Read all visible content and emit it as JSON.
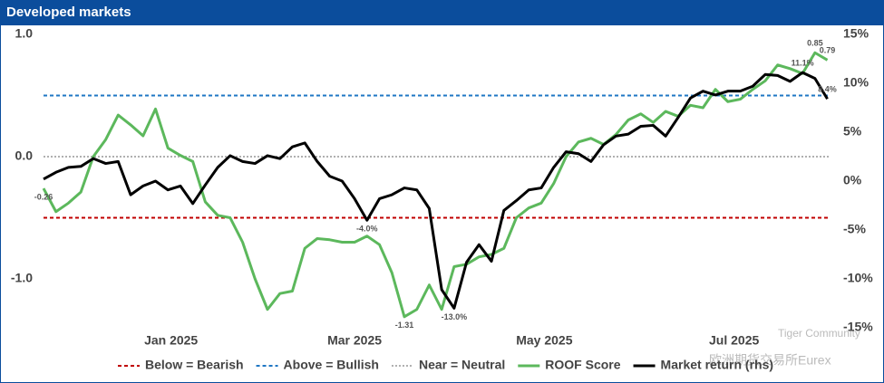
{
  "chart_data": {
    "type": "line",
    "title": "Developed markets",
    "x": [
      0,
      4,
      8,
      12,
      16,
      20,
      24,
      28,
      32,
      36,
      40,
      44,
      48,
      52,
      56,
      60,
      64,
      68,
      72,
      76,
      80,
      84,
      88,
      92,
      96,
      100,
      104,
      108,
      112,
      116,
      120,
      124,
      128,
      132,
      136,
      140,
      144,
      148,
      152,
      156,
      160,
      164,
      168,
      172,
      176,
      180,
      184,
      188,
      192,
      196,
      200,
      204,
      208,
      212,
      216,
      220,
      224,
      228,
      232,
      236,
      240,
      244,
      248,
      252
    ],
    "xlim": [
      0,
      253
    ],
    "xticks": [
      {
        "value": 41,
        "label": "Jan 2025"
      },
      {
        "value": 100,
        "label": "Mar 2025"
      },
      {
        "value": 161,
        "label": "May 2025"
      },
      {
        "value": 222,
        "label": "Jul 2025"
      }
    ],
    "ylim": [
      -1.4,
      1.0
    ],
    "yticks": [
      {
        "value": 1,
        "label": "1.0"
      },
      {
        "value": 0,
        "label": "0.0"
      },
      {
        "value": -1,
        "label": "-1.0"
      }
    ],
    "y2lim": [
      -15,
      15
    ],
    "y2ticks": [
      {
        "value": 15,
        "label": "15%"
      },
      {
        "value": 10,
        "label": "10%"
      },
      {
        "value": 5,
        "label": "5%"
      },
      {
        "value": 0,
        "label": "0%"
      },
      {
        "value": -5,
        "label": "-5%"
      },
      {
        "value": -10,
        "label": "-10%"
      },
      {
        "value": -15,
        "label": "-15%"
      }
    ],
    "reference_lines": [
      {
        "name": "Below = Bearish",
        "value": -0.5,
        "color": "#c00000",
        "style": "dashed"
      },
      {
        "name": "Above = Bullish",
        "value": 0.5,
        "color": "#1f77c4",
        "style": "dashed"
      },
      {
        "name": "Near = Neutral",
        "value": 0,
        "color": "#b0b0b0",
        "style": "dotted"
      }
    ],
    "series": [
      {
        "name": "ROOF Score",
        "color": "#5cb85c",
        "values": [
          -0.26,
          -0.45,
          -0.38,
          -0.29,
          0.0,
          0.14,
          0.34,
          0.26,
          0.17,
          0.39,
          0.07,
          0.01,
          -0.04,
          -0.37,
          -0.48,
          -0.5,
          -0.7,
          -1.0,
          -1.25,
          -1.12,
          -1.1,
          -0.75,
          -0.67,
          -0.68,
          -0.7,
          -0.7,
          -0.65,
          -0.72,
          -0.95,
          -1.31,
          -1.25,
          -1.05,
          -1.25,
          -0.9,
          -0.88,
          -0.82,
          -0.8,
          -0.75,
          -0.5,
          -0.42,
          -0.38,
          -0.22,
          0.0,
          0.12,
          0.15,
          0.1,
          0.18,
          0.3,
          0.35,
          0.28,
          0.37,
          0.33,
          0.42,
          0.4,
          0.55,
          0.45,
          0.47,
          0.55,
          0.62,
          0.75,
          0.72,
          0.68,
          0.85,
          0.79
        ],
        "value_labels": [
          "-0.26",
          null,
          null,
          null,
          null,
          null,
          null,
          null,
          null,
          null,
          null,
          null,
          null,
          null,
          null,
          null,
          null,
          null,
          null,
          null,
          null,
          null,
          null,
          null,
          null,
          null,
          null,
          null,
          null,
          "-1.31",
          null,
          null,
          null,
          null,
          null,
          null,
          null,
          null,
          null,
          null,
          null,
          null,
          null,
          null,
          null,
          null,
          null,
          null,
          null,
          null,
          null,
          null,
          null,
          null,
          null,
          null,
          null,
          null,
          null,
          null,
          null,
          null,
          "0.85",
          "0.79"
        ]
      },
      {
        "name": "Market return (rhs)",
        "color": "#000000",
        "axis": "y2",
        "values": [
          0.2,
          0.9,
          1.4,
          1.5,
          2.3,
          1.8,
          2.0,
          -1.4,
          -0.5,
          0.0,
          -0.9,
          -0.5,
          -2.3,
          -0.4,
          1.4,
          2.6,
          2.0,
          1.8,
          2.6,
          2.3,
          3.5,
          3.9,
          2.0,
          0.5,
          0.0,
          -1.8,
          -4.0,
          -1.8,
          -1.4,
          -0.7,
          -0.9,
          -2.8,
          -11.1,
          -13.0,
          -8.3,
          -6.5,
          -8.2,
          -3.0,
          -2.0,
          -0.9,
          -0.7,
          1.4,
          3.0,
          2.8,
          2.0,
          3.7,
          4.6,
          4.8,
          5.6,
          5.7,
          4.6,
          6.5,
          8.5,
          9.2,
          8.8,
          9.2,
          9.2,
          9.7,
          10.9,
          10.8,
          10.2,
          11.1,
          10.5,
          8.4
        ],
        "value_labels": [
          null,
          null,
          null,
          null,
          null,
          null,
          null,
          null,
          null,
          null,
          null,
          null,
          null,
          null,
          null,
          null,
          null,
          null,
          null,
          null,
          null,
          null,
          null,
          null,
          null,
          null,
          "-4.0%",
          null,
          null,
          null,
          null,
          null,
          null,
          "-13.0%",
          null,
          null,
          null,
          null,
          null,
          null,
          null,
          null,
          null,
          null,
          null,
          null,
          null,
          null,
          null,
          null,
          null,
          null,
          null,
          null,
          null,
          null,
          null,
          null,
          null,
          null,
          null,
          "11.1%",
          null,
          "8.4%"
        ]
      }
    ],
    "watermark": [
      "Tiger Community",
      "欧洲期货交易所Eurex"
    ]
  }
}
